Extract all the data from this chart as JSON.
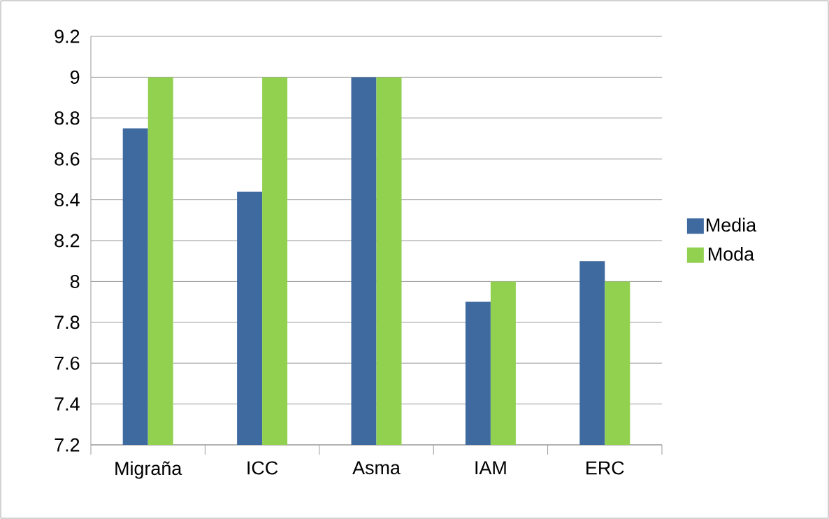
{
  "chart_data": {
    "type": "bar",
    "categories": [
      "Migraña",
      "ICC",
      "Asma",
      "IAM",
      "ERC"
    ],
    "series": [
      {
        "name": "Media",
        "color": "#3f6a9f",
        "values": [
          8.75,
          8.44,
          9,
          7.9,
          8.1
        ]
      },
      {
        "name": "Moda",
        "color": "#92d050",
        "values": [
          9,
          9,
          9,
          8,
          8
        ]
      }
    ],
    "ylim": [
      7.2,
      9.2
    ],
    "yticks": [
      7.2,
      7.4,
      7.6,
      7.8,
      8,
      8.2,
      8.4,
      8.6,
      8.8,
      9,
      9.2
    ],
    "grid": "y",
    "legend": "right"
  }
}
